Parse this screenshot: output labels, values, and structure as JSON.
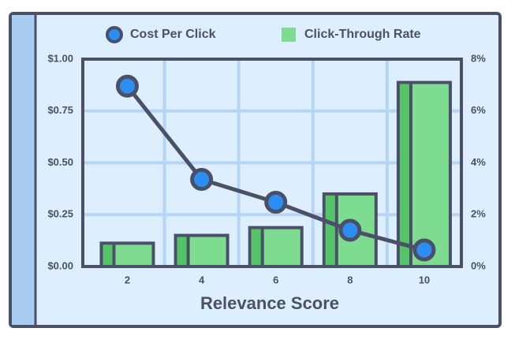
{
  "chart_data": {
    "type": "bar_line_dual",
    "x_label": "Relevance Score",
    "x": [
      2,
      4,
      6,
      8,
      10
    ],
    "xlim": [
      0.8,
      11
    ],
    "xticks": [
      2,
      4,
      6,
      8,
      10
    ],
    "xgrid": [
      3,
      5,
      7,
      9
    ],
    "series": [
      {
        "name": "Cost Per Click",
        "type": "line",
        "color": "#2b8ef0",
        "axis": "y",
        "values": [
          0.87,
          0.42,
          0.31,
          0.175,
          0.08
        ]
      },
      {
        "name": "Click-Through Rate",
        "type": "bar",
        "color": "#7ddc8f",
        "axis": "y2",
        "values": [
          0.9,
          1.2,
          1.5,
          2.8,
          7.1
        ]
      }
    ],
    "ylim": [
      0,
      1
    ],
    "yticks": [
      {
        "value": 0,
        "label": "$0.00"
      },
      {
        "value": 0.25,
        "label": "$0.25"
      },
      {
        "value": 0.5,
        "label": "$0.50"
      },
      {
        "value": 0.75,
        "label": "$0.75"
      },
      {
        "value": 1,
        "label": "$1.00"
      }
    ],
    "y2lim": [
      0,
      8
    ],
    "y2ticks": [
      {
        "value": 0,
        "label": "0%"
      },
      {
        "value": 2,
        "label": "2%"
      },
      {
        "value": 4,
        "label": "4%"
      },
      {
        "value": 6,
        "label": "6%"
      },
      {
        "value": 8,
        "label": "8%"
      }
    ],
    "grid": true
  }
}
